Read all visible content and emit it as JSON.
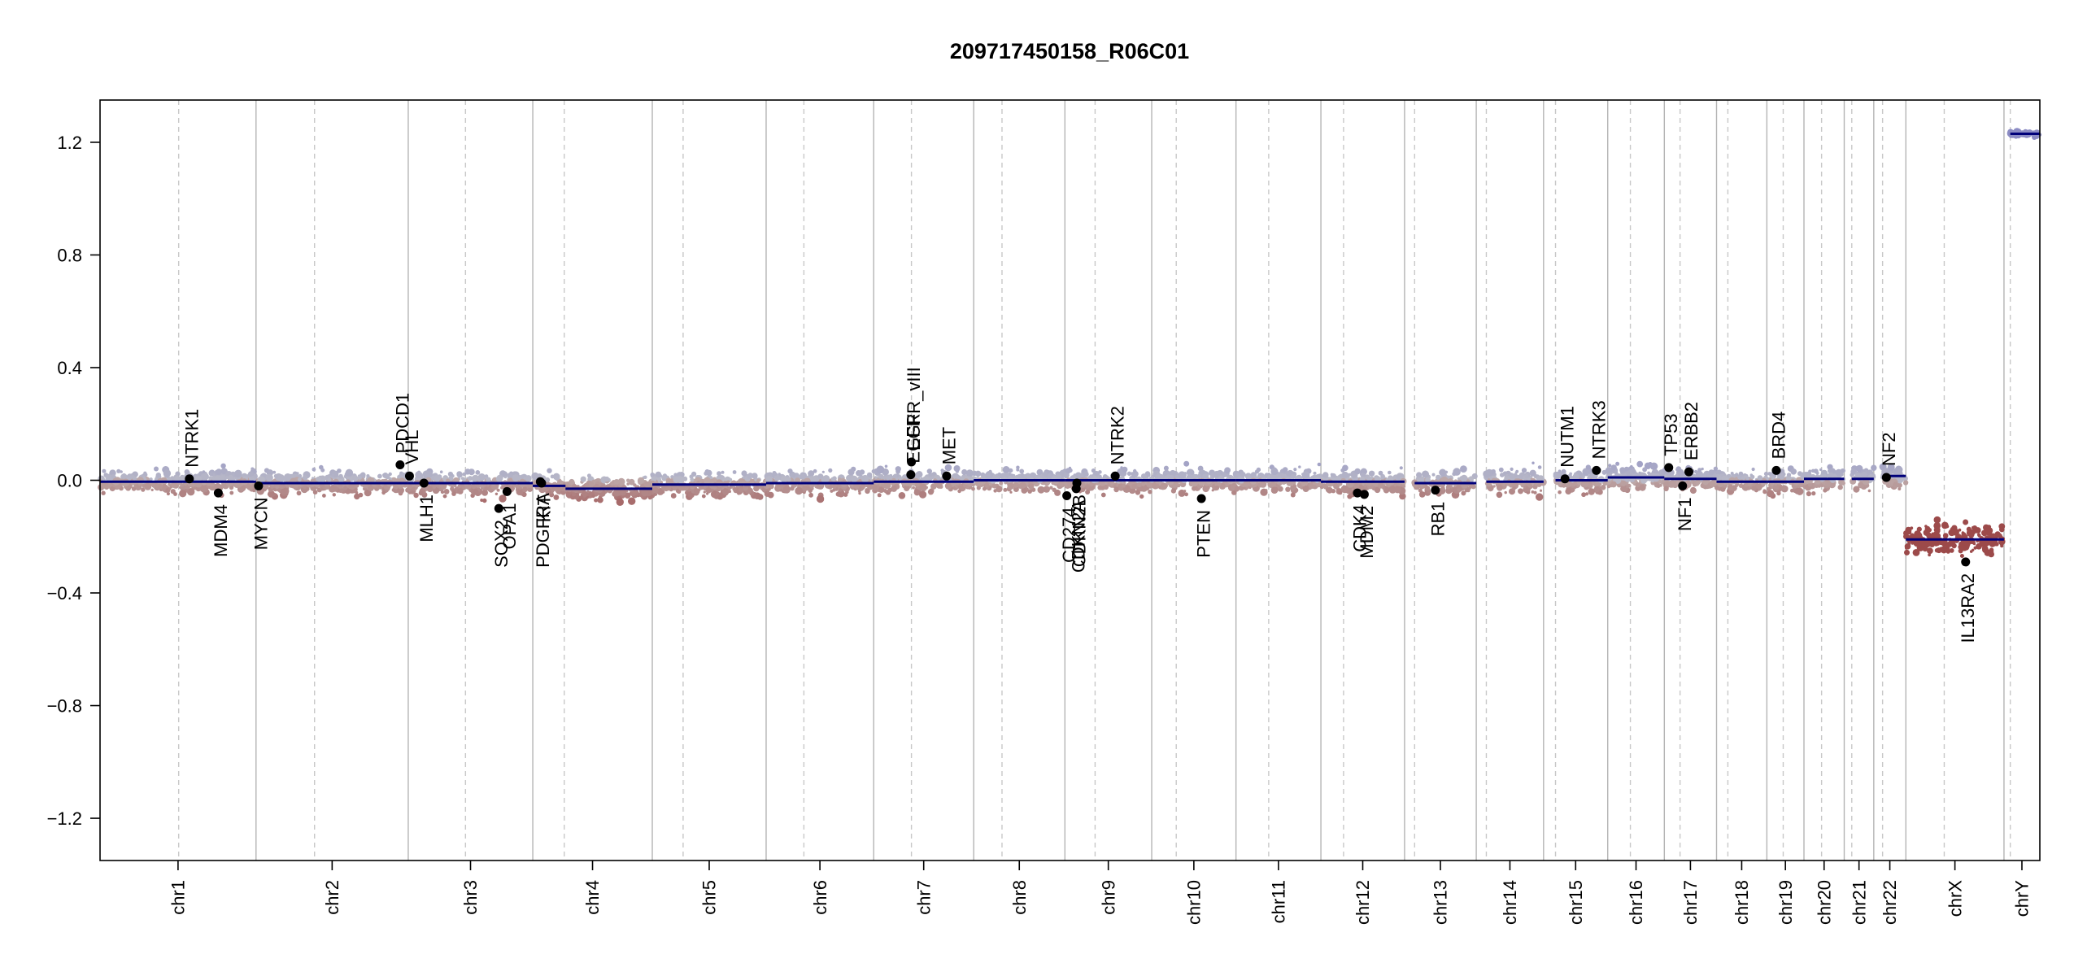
{
  "chart_data": {
    "type": "scatter",
    "title": "209717450158_R06C01",
    "xlabel": "",
    "ylabel": "",
    "ylim": [
      -1.35,
      1.35
    ],
    "y_ticks": [
      1.2,
      0.8,
      0.4,
      0.0,
      -0.4,
      -0.8,
      -1.2
    ],
    "y_tick_labels": [
      "1.2",
      "0.8",
      "0.4",
      "0.0",
      "−0.4",
      "−0.8",
      "−1.2"
    ],
    "grid": false,
    "legend": "none",
    "colors": {
      "segment": "#00007a",
      "gain": "#8c8cc4",
      "loss": "#9c4a4a",
      "neutral": "#c8c8c8",
      "boundary": "#b4b4b4",
      "centromere": "#c8c8c8",
      "gene_point": "#000000"
    },
    "chromosomes": [
      {
        "name": "chr1",
        "start": 0,
        "end": 248,
        "cen": 125
      },
      {
        "name": "chr2",
        "start": 248,
        "end": 490,
        "cen": 341
      },
      {
        "name": "chr3",
        "start": 490,
        "end": 688,
        "cen": 581
      },
      {
        "name": "chr4",
        "start": 688,
        "end": 878,
        "cen": 738
      },
      {
        "name": "chr5",
        "start": 878,
        "end": 1059,
        "cen": 927
      },
      {
        "name": "chr6",
        "start": 1059,
        "end": 1230,
        "cen": 1119
      },
      {
        "name": "chr7",
        "start": 1230,
        "end": 1389,
        "cen": 1290
      },
      {
        "name": "chr8",
        "start": 1389,
        "end": 1534,
        "cen": 1434
      },
      {
        "name": "chr9",
        "start": 1534,
        "end": 1672,
        "cen": 1582
      },
      {
        "name": "chr10",
        "start": 1672,
        "end": 1806,
        "cen": 1711
      },
      {
        "name": "chr11",
        "start": 1806,
        "end": 1941,
        "cen": 1858
      },
      {
        "name": "chr12",
        "start": 1941,
        "end": 2074,
        "cen": 1977
      },
      {
        "name": "chr13",
        "start": 2074,
        "end": 2188,
        "cen": 2090
      },
      {
        "name": "chr14",
        "start": 2188,
        "end": 2295,
        "cen": 2204
      },
      {
        "name": "chr15",
        "start": 2295,
        "end": 2397,
        "cen": 2314
      },
      {
        "name": "chr16",
        "start": 2397,
        "end": 2487,
        "cen": 2433
      },
      {
        "name": "chr17",
        "start": 2487,
        "end": 2570,
        "cen": 2512
      },
      {
        "name": "chr18",
        "start": 2570,
        "end": 2650,
        "cen": 2588
      },
      {
        "name": "chr19",
        "start": 2650,
        "end": 2709,
        "cen": 2676
      },
      {
        "name": "chr20",
        "start": 2709,
        "end": 2773,
        "cen": 2737
      },
      {
        "name": "chr21",
        "start": 2773,
        "end": 2820,
        "cen": 2785
      },
      {
        "name": "chr22",
        "start": 2820,
        "end": 2871,
        "cen": 2834
      },
      {
        "name": "chrX",
        "start": 2871,
        "end": 3027,
        "cen": 2932
      },
      {
        "name": "chrY",
        "start": 3027,
        "end": 3084,
        "cen": 3037
      }
    ],
    "segments": [
      {
        "chr": "chr1",
        "x": [
          0,
          248
        ],
        "y": -0.005
      },
      {
        "chr": "chr2",
        "x": [
          248,
          490
        ],
        "y": -0.01
      },
      {
        "chr": "chr3",
        "x": [
          490,
          688
        ],
        "y": -0.01
      },
      {
        "chr": "chr4",
        "x": [
          688,
          740
        ],
        "y": -0.02
      },
      {
        "chr": "chr4",
        "x": [
          740,
          878
        ],
        "y": -0.03
      },
      {
        "chr": "chr5",
        "x": [
          878,
          1059
        ],
        "y": -0.015
      },
      {
        "chr": "chr6",
        "x": [
          1059,
          1230
        ],
        "y": -0.01
      },
      {
        "chr": "chr7",
        "x": [
          1230,
          1389
        ],
        "y": -0.005
      },
      {
        "chr": "chr8",
        "x": [
          1389,
          1534
        ],
        "y": 0.0
      },
      {
        "chr": "chr9",
        "x": [
          1534,
          1672
        ],
        "y": 0.0
      },
      {
        "chr": "chr10",
        "x": [
          1672,
          1806
        ],
        "y": 0.0
      },
      {
        "chr": "chr11",
        "x": [
          1806,
          1941
        ],
        "y": 0.0
      },
      {
        "chr": "chr12",
        "x": [
          1941,
          2074
        ],
        "y": -0.005
      },
      {
        "chr": "chr13",
        "x": [
          2090,
          2188
        ],
        "y": -0.01
      },
      {
        "chr": "chr14",
        "x": [
          2204,
          2295
        ],
        "y": -0.005
      },
      {
        "chr": "chr15",
        "x": [
          2314,
          2397
        ],
        "y": 0.0
      },
      {
        "chr": "chr16",
        "x": [
          2397,
          2487
        ],
        "y": 0.01
      },
      {
        "chr": "chr17",
        "x": [
          2487,
          2570
        ],
        "y": 0.005
      },
      {
        "chr": "chr18",
        "x": [
          2570,
          2650
        ],
        "y": -0.005
      },
      {
        "chr": "chr19",
        "x": [
          2650,
          2709
        ],
        "y": -0.005
      },
      {
        "chr": "chr20",
        "x": [
          2709,
          2773
        ],
        "y": 0.005
      },
      {
        "chr": "chr21",
        "x": [
          2785,
          2820
        ],
        "y": 0.005
      },
      {
        "chr": "chr22",
        "x": [
          2834,
          2871
        ],
        "y": 0.015
      },
      {
        "chr": "chrX",
        "x": [
          2871,
          3027
        ],
        "y": -0.21
      },
      {
        "chr": "chrY",
        "x": [
          3037,
          3084
        ],
        "y": 1.23
      }
    ],
    "genes": [
      {
        "name": "NTRK1",
        "x": 142,
        "y": 0.005,
        "label_pos": "above"
      },
      {
        "name": "MDM4",
        "x": 188,
        "y": -0.045,
        "label_pos": "below"
      },
      {
        "name": "MYCN",
        "x": 252,
        "y": -0.02,
        "label_pos": "below"
      },
      {
        "name": "PDCD1",
        "x": 477,
        "y": 0.055,
        "label_pos": "above"
      },
      {
        "name": "VHL",
        "x": 492,
        "y": 0.015,
        "label_pos": "above"
      },
      {
        "name": "MLH1",
        "x": 515,
        "y": -0.01,
        "label_pos": "below"
      },
      {
        "name": "SOX2",
        "x": 634,
        "y": -0.1,
        "label_pos": "below"
      },
      {
        "name": "OPA1",
        "x": 647,
        "y": -0.04,
        "label_pos": "below"
      },
      {
        "name": "PDGFRA",
        "x": 700,
        "y": -0.005,
        "label_pos": "below"
      },
      {
        "name": "KIT",
        "x": 702,
        "y": -0.01,
        "label_pos": "below"
      },
      {
        "name": "EGFR",
        "x": 1289,
        "y": 0.02,
        "label_pos": "above"
      },
      {
        "name": "EGFR_vIII",
        "x": 1290,
        "y": 0.065,
        "label_pos": "above"
      },
      {
        "name": "MET",
        "x": 1346,
        "y": 0.015,
        "label_pos": "above"
      },
      {
        "name": "CD274",
        "x": 1537,
        "y": -0.055,
        "label_pos": "below"
      },
      {
        "name": "CDKN2A",
        "x": 1552,
        "y": -0.03,
        "label_pos": "below"
      },
      {
        "name": "CDKN2B",
        "x": 1553,
        "y": -0.01,
        "label_pos": "below"
      },
      {
        "name": "NTRK2",
        "x": 1614,
        "y": 0.015,
        "label_pos": "above"
      },
      {
        "name": "PTEN",
        "x": 1751,
        "y": -0.065,
        "label_pos": "below"
      },
      {
        "name": "CDK4",
        "x": 1999,
        "y": -0.045,
        "label_pos": "below"
      },
      {
        "name": "MDM2",
        "x": 2010,
        "y": -0.05,
        "label_pos": "below"
      },
      {
        "name": "RB1",
        "x": 2123,
        "y": -0.035,
        "label_pos": "below"
      },
      {
        "name": "NUTM1",
        "x": 2329,
        "y": 0.005,
        "label_pos": "above"
      },
      {
        "name": "NTRK3",
        "x": 2379,
        "y": 0.035,
        "label_pos": "above"
      },
      {
        "name": "TP53",
        "x": 2494,
        "y": 0.045,
        "label_pos": "above"
      },
      {
        "name": "NF1",
        "x": 2516,
        "y": -0.02,
        "label_pos": "below"
      },
      {
        "name": "ERBB2",
        "x": 2526,
        "y": 0.03,
        "label_pos": "above"
      },
      {
        "name": "BRD4",
        "x": 2665,
        "y": 0.035,
        "label_pos": "above"
      },
      {
        "name": "NF2",
        "x": 2840,
        "y": 0.01,
        "label_pos": "above"
      },
      {
        "name": "IL13RA2",
        "x": 2966,
        "y": -0.29,
        "label_pos": "below"
      }
    ]
  }
}
